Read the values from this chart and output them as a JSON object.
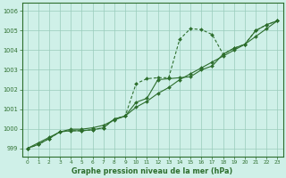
{
  "title": "Graphe pression niveau de la mer (hPa)",
  "background_color": "#cff0e8",
  "grid_color": "#99ccbb",
  "line_color": "#2d6e2d",
  "xlim": [
    -0.5,
    23.5
  ],
  "ylim": [
    998.6,
    1006.4
  ],
  "yticks": [
    999,
    1000,
    1001,
    1002,
    1003,
    1004,
    1005,
    1006
  ],
  "xticks": [
    0,
    1,
    2,
    3,
    4,
    5,
    6,
    7,
    8,
    9,
    10,
    11,
    12,
    13,
    14,
    15,
    16,
    17,
    18,
    19,
    20,
    21,
    22,
    23
  ],
  "y_straight": [
    999.0,
    999.28,
    999.56,
    999.84,
    999.98,
    999.98,
    1000.05,
    1000.18,
    1000.45,
    1000.65,
    1001.1,
    1001.4,
    1001.8,
    1002.1,
    1002.5,
    1002.8,
    1003.1,
    1003.4,
    1003.7,
    1004.0,
    1004.3,
    1004.7,
    1005.1,
    1005.5
  ],
  "y_curvy": [
    999.0,
    999.2,
    999.5,
    999.85,
    999.9,
    999.9,
    999.95,
    1000.05,
    1000.5,
    1000.65,
    1001.35,
    1001.55,
    1002.5,
    1002.55,
    1002.6,
    1002.65,
    1003.0,
    1003.2,
    1003.8,
    1004.1,
    1004.3,
    1005.0,
    1005.3,
    1005.5
  ],
  "y_dashed_x": [
    0,
    1,
    2,
    3,
    4,
    5,
    6,
    7,
    8,
    9,
    10,
    11,
    12,
    13,
    14,
    15,
    16,
    17,
    18,
    19,
    20,
    21,
    22,
    23
  ],
  "y_dashed": [
    999.0,
    999.2,
    999.5,
    999.85,
    999.9,
    999.9,
    999.95,
    1000.05,
    1000.5,
    1000.65,
    1002.3,
    1002.55,
    1002.6,
    1002.6,
    1004.55,
    1005.1,
    1005.05,
    1004.8,
    1003.8,
    1004.1,
    1004.3,
    1005.0,
    1005.3,
    1005.5
  ]
}
